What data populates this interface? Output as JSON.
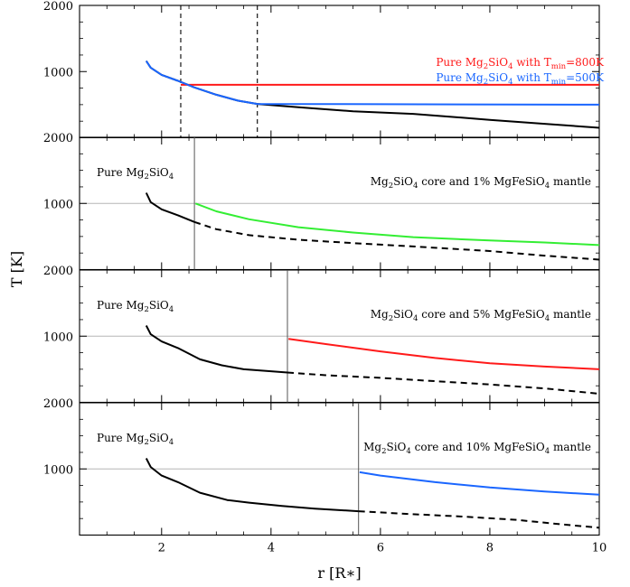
{
  "chart_data": {
    "type": "line",
    "xlabel": "r [R∗]",
    "ylabel": "T [K]",
    "xlim": [
      0.5,
      10
    ],
    "x_ticks": [
      "2",
      "4",
      "6",
      "8",
      "10"
    ],
    "shared_x_axis": true,
    "panels": [
      {
        "ylim": [
          0,
          2000
        ],
        "y_ticks": [
          "2000",
          "1000"
        ],
        "vertical_dashed_lines_x": [
          2.35,
          3.75
        ],
        "legend_placement": "top-right",
        "legend": [
          {
            "parts": [
              [
                "Pure Mg",
                ""
              ],
              [
                "2",
                "sub"
              ],
              [
                "SiO",
                ""
              ],
              [
                "4",
                "sub"
              ],
              [
                " with T",
                ""
              ],
              [
                "min",
                "sub"
              ],
              [
                "=800K",
                ""
              ]
            ],
            "color": "#ff1a1a"
          },
          {
            "parts": [
              [
                "Pure Mg",
                ""
              ],
              [
                "2",
                "sub"
              ],
              [
                "SiO",
                ""
              ],
              [
                "4",
                "sub"
              ],
              [
                " with T",
                ""
              ],
              [
                "min",
                "sub"
              ],
              [
                "=500K",
                ""
              ]
            ],
            "color": "#1a66ff"
          }
        ],
        "series": [
          {
            "style": "solid",
            "color": "#000000",
            "x": [
              1.72,
              1.8,
              2.0,
              2.3,
              2.6,
              3.0,
              3.4,
              3.75,
              4.5,
              5.5,
              6.6,
              8.0,
              9.0,
              10.0
            ],
            "y": [
              1160,
              1060,
              950,
              860,
              760,
              650,
              560,
              510,
              460,
              400,
              360,
              270,
              210,
              150
            ]
          },
          {
            "name": "Pure Mg2SiO4 with Tmin=800K",
            "style": "solid",
            "color": "#ff1a1a",
            "x": [
              2.35,
              10.0
            ],
            "y": [
              800,
              800
            ]
          },
          {
            "name": "Pure Mg2SiO4 with Tmin=500K",
            "style": "solid",
            "color": "#1a66ff",
            "x": [
              1.72,
              1.8,
              2.0,
              2.3,
              2.6,
              3.0,
              3.4,
              3.75,
              10.0
            ],
            "y": [
              1160,
              1060,
              950,
              860,
              760,
              650,
              560,
              510,
              500
            ]
          }
        ]
      },
      {
        "ylim": [
          0,
          2000
        ],
        "y_ticks": [
          "2000",
          "1000"
        ],
        "grid_y": [
          1000
        ],
        "divider_x": 2.6,
        "left_label": [
          [
            "Pure Mg",
            ""
          ],
          [
            "2",
            "sub"
          ],
          [
            "SiO",
            ""
          ],
          [
            "4",
            "sub"
          ]
        ],
        "right_label": [
          [
            "Mg",
            ""
          ],
          [
            "2",
            "sub"
          ],
          [
            "SiO",
            ""
          ],
          [
            "4",
            "sub"
          ],
          [
            " core and 1% MgFeSiO",
            ""
          ],
          [
            "4",
            "sub"
          ],
          [
            " mantle",
            ""
          ]
        ],
        "series": [
          {
            "style": "solid",
            "color": "#000000",
            "x": [
              1.72,
              1.8,
              2.0,
              2.3,
              2.6
            ],
            "y": [
              1160,
              1020,
              910,
              820,
              720
            ]
          },
          {
            "style": "dashed",
            "color": "#000000",
            "x": [
              2.6,
              3.0,
              3.6,
              4.5,
              5.5,
              6.6,
              8.0,
              9.0,
              10.0
            ],
            "y": [
              720,
              610,
              520,
              450,
              400,
              350,
              280,
              210,
              150
            ]
          },
          {
            "style": "solid",
            "color": "#33ee33",
            "x": [
              2.62,
              3.0,
              3.6,
              4.5,
              5.5,
              6.6,
              8.0,
              9.0,
              10.0
            ],
            "y": [
              1000,
              880,
              760,
              640,
              560,
              490,
              440,
              410,
              370
            ]
          }
        ]
      },
      {
        "ylim": [
          0,
          2000
        ],
        "y_ticks": [
          "2000",
          "1000"
        ],
        "grid_y": [
          1000
        ],
        "divider_x": 4.3,
        "left_label": [
          [
            "Pure Mg",
            ""
          ],
          [
            "2",
            "sub"
          ],
          [
            "SiO",
            ""
          ],
          [
            "4",
            "sub"
          ]
        ],
        "right_label": [
          [
            "Mg",
            ""
          ],
          [
            "2",
            "sub"
          ],
          [
            "SiO",
            ""
          ],
          [
            "4",
            "sub"
          ],
          [
            " core and 5% MgFeSiO",
            ""
          ],
          [
            "4",
            "sub"
          ],
          [
            " mantle",
            ""
          ]
        ],
        "series": [
          {
            "style": "solid",
            "color": "#000000",
            "x": [
              1.72,
              1.8,
              2.0,
              2.3,
              2.7,
              3.1,
              3.5,
              4.0,
              4.3
            ],
            "y": [
              1160,
              1030,
              920,
              820,
              650,
              560,
              500,
              470,
              450
            ]
          },
          {
            "style": "dashed",
            "color": "#000000",
            "x": [
              4.3,
              5.0,
              6.0,
              7.0,
              8.0,
              9.0,
              10.0
            ],
            "y": [
              450,
              410,
              370,
              320,
              270,
              210,
              130
            ]
          },
          {
            "style": "solid",
            "color": "#ff1a1a",
            "x": [
              4.32,
              5.0,
              6.0,
              7.0,
              8.0,
              9.0,
              10.0
            ],
            "y": [
              960,
              880,
              770,
              670,
              590,
              540,
              500
            ]
          }
        ]
      },
      {
        "ylim": [
          0,
          2000
        ],
        "y_ticks": [
          "2000",
          "1000"
        ],
        "grid_y": [
          1000
        ],
        "divider_x": 5.6,
        "left_label": [
          [
            "Pure Mg",
            ""
          ],
          [
            "2",
            "sub"
          ],
          [
            "SiO",
            ""
          ],
          [
            "4",
            "sub"
          ]
        ],
        "right_label": [
          [
            "Mg",
            ""
          ],
          [
            "2",
            "sub"
          ],
          [
            "SiO",
            ""
          ],
          [
            "4",
            "sub"
          ],
          [
            " core and 10% MgFeSiO",
            ""
          ],
          [
            "4",
            "sub"
          ],
          [
            " mantle",
            ""
          ]
        ],
        "series": [
          {
            "style": "solid",
            "color": "#000000",
            "x": [
              1.72,
              1.8,
              2.0,
              2.3,
              2.7,
              3.2,
              3.6,
              4.2,
              4.8,
              5.6
            ],
            "y": [
              1160,
              1030,
              900,
              800,
              640,
              530,
              490,
              440,
              400,
              360
            ]
          },
          {
            "style": "dashed",
            "color": "#000000",
            "x": [
              5.6,
              6.5,
              7.5,
              8.5,
              9.2,
              10.0
            ],
            "y": [
              360,
              320,
              280,
              230,
              170,
              110
            ]
          },
          {
            "style": "solid",
            "color": "#1a66ff",
            "x": [
              5.62,
              6.0,
              7.0,
              8.0,
              9.0,
              10.0
            ],
            "y": [
              950,
              900,
              800,
              720,
              660,
              610
            ]
          }
        ]
      }
    ]
  }
}
